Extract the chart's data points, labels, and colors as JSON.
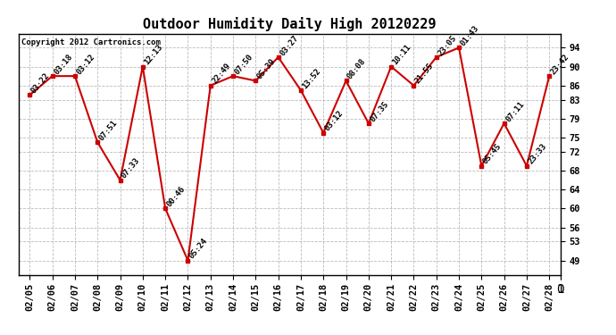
{
  "title": "Outdoor Humidity Daily High 20120229",
  "copyright": "Copyright 2012 Cartronics.com",
  "dates": [
    "02/05",
    "02/06",
    "02/07",
    "02/08",
    "02/09",
    "02/10",
    "02/11",
    "02/12",
    "02/13",
    "02/14",
    "02/15",
    "02/16",
    "02/17",
    "02/18",
    "02/19",
    "02/20",
    "02/21",
    "02/22",
    "02/23",
    "02/24",
    "02/25",
    "02/26",
    "02/27",
    "02/28"
  ],
  "values": [
    84,
    88,
    88,
    74,
    66,
    90,
    60,
    49,
    86,
    88,
    87,
    92,
    85,
    76,
    87,
    78,
    90,
    86,
    92,
    94,
    69,
    78,
    69,
    88
  ],
  "labels": [
    "03:22",
    "03:18",
    "03:12",
    "07:51",
    "07:33",
    "12:13",
    "00:46",
    "05:24",
    "22:49",
    "07:50",
    "05:39",
    "03:27",
    "13:52",
    "03:12",
    "08:08",
    "07:35",
    "10:11",
    "21:55",
    "23:05",
    "01:43",
    "05:45",
    "07:11",
    "23:33",
    "23:42"
  ],
  "line_color": "#cc0000",
  "marker_color": "#cc0000",
  "bg_color": "#ffffff",
  "grid_color": "#aaaaaa",
  "title_fontsize": 11,
  "label_fontsize": 6.5,
  "yticks": [
    49,
    53,
    56,
    60,
    64,
    68,
    72,
    75,
    79,
    83,
    86,
    90,
    94
  ],
  "ylim": [
    46,
    97
  ],
  "tick_fontsize": 7.5
}
